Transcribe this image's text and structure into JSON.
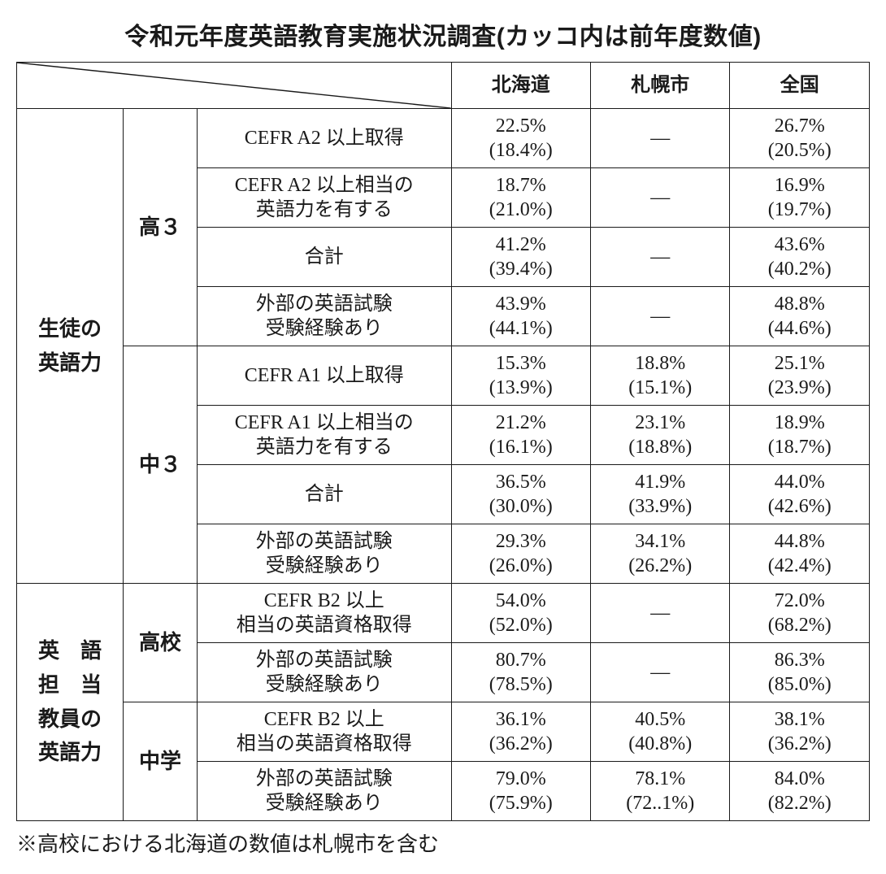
{
  "title": "令和元年度英語教育実施状況調査(カッコ内は前年度数値)",
  "columns": [
    "北海道",
    "札幌市",
    "全国"
  ],
  "groups": [
    {
      "label": "生徒の\n英語力",
      "sub": [
        {
          "label": "高３",
          "rows": [
            {
              "label": "CEFR A2 以上取得",
              "hokkaido": "22.5%\n(18.4%)",
              "sapporo": "—",
              "zen": "26.7%\n(20.5%)"
            },
            {
              "label": "CEFR A2 以上相当の\n英語力を有する",
              "hokkaido": "18.7%\n(21.0%)",
              "sapporo": "—",
              "zen": "16.9%\n(19.7%)"
            },
            {
              "label": "合計",
              "hokkaido": "41.2%\n(39.4%)",
              "sapporo": "—",
              "zen": "43.6%\n(40.2%)"
            },
            {
              "label": "外部の英語試験\n受験経験あり",
              "hokkaido": "43.9%\n(44.1%)",
              "sapporo": "—",
              "zen": "48.8%\n(44.6%)"
            }
          ]
        },
        {
          "label": "中３",
          "rows": [
            {
              "label": "CEFR A1 以上取得",
              "hokkaido": "15.3%\n(13.9%)",
              "sapporo": "18.8%\n(15.1%)",
              "zen": "25.1%\n(23.9%)"
            },
            {
              "label": "CEFR A1 以上相当の\n英語力を有する",
              "hokkaido": "21.2%\n(16.1%)",
              "sapporo": "23.1%\n(18.8%)",
              "zen": "18.9%\n(18.7%)"
            },
            {
              "label": "合計",
              "hokkaido": "36.5%\n(30.0%)",
              "sapporo": "41.9%\n(33.9%)",
              "zen": "44.0%\n(42.6%)"
            },
            {
              "label": "外部の英語試験\n受験経験あり",
              "hokkaido": "29.3%\n(26.0%)",
              "sapporo": "34.1%\n(26.2%)",
              "zen": "44.8%\n(42.4%)"
            }
          ]
        }
      ]
    },
    {
      "label": "英　語\n担　当\n教員の\n英語力",
      "sub": [
        {
          "label": "高校",
          "rows": [
            {
              "label": "CEFR B2 以上\n相当の英語資格取得",
              "hokkaido": "54.0%\n(52.0%)",
              "sapporo": "—",
              "zen": "72.0%\n(68.2%)"
            },
            {
              "label": "外部の英語試験\n受験経験あり",
              "hokkaido": "80.7%\n(78.5%)",
              "sapporo": "—",
              "zen": "86.3%\n(85.0%)"
            }
          ]
        },
        {
          "label": "中学",
          "rows": [
            {
              "label": "CEFR B2 以上\n相当の英語資格取得",
              "hokkaido": "36.1%\n(36.2%)",
              "sapporo": "40.5%\n(40.8%)",
              "zen": "38.1%\n(36.2%)"
            },
            {
              "label": "外部の英語試験\n受験経験あり",
              "hokkaido": "79.0%\n(75.9%)",
              "sapporo": "78.1%\n(72..1%)",
              "zen": "84.0%\n(82.2%)"
            }
          ]
        }
      ]
    }
  ],
  "footnote": "※高校における北海道の数値は札幌市を含む"
}
